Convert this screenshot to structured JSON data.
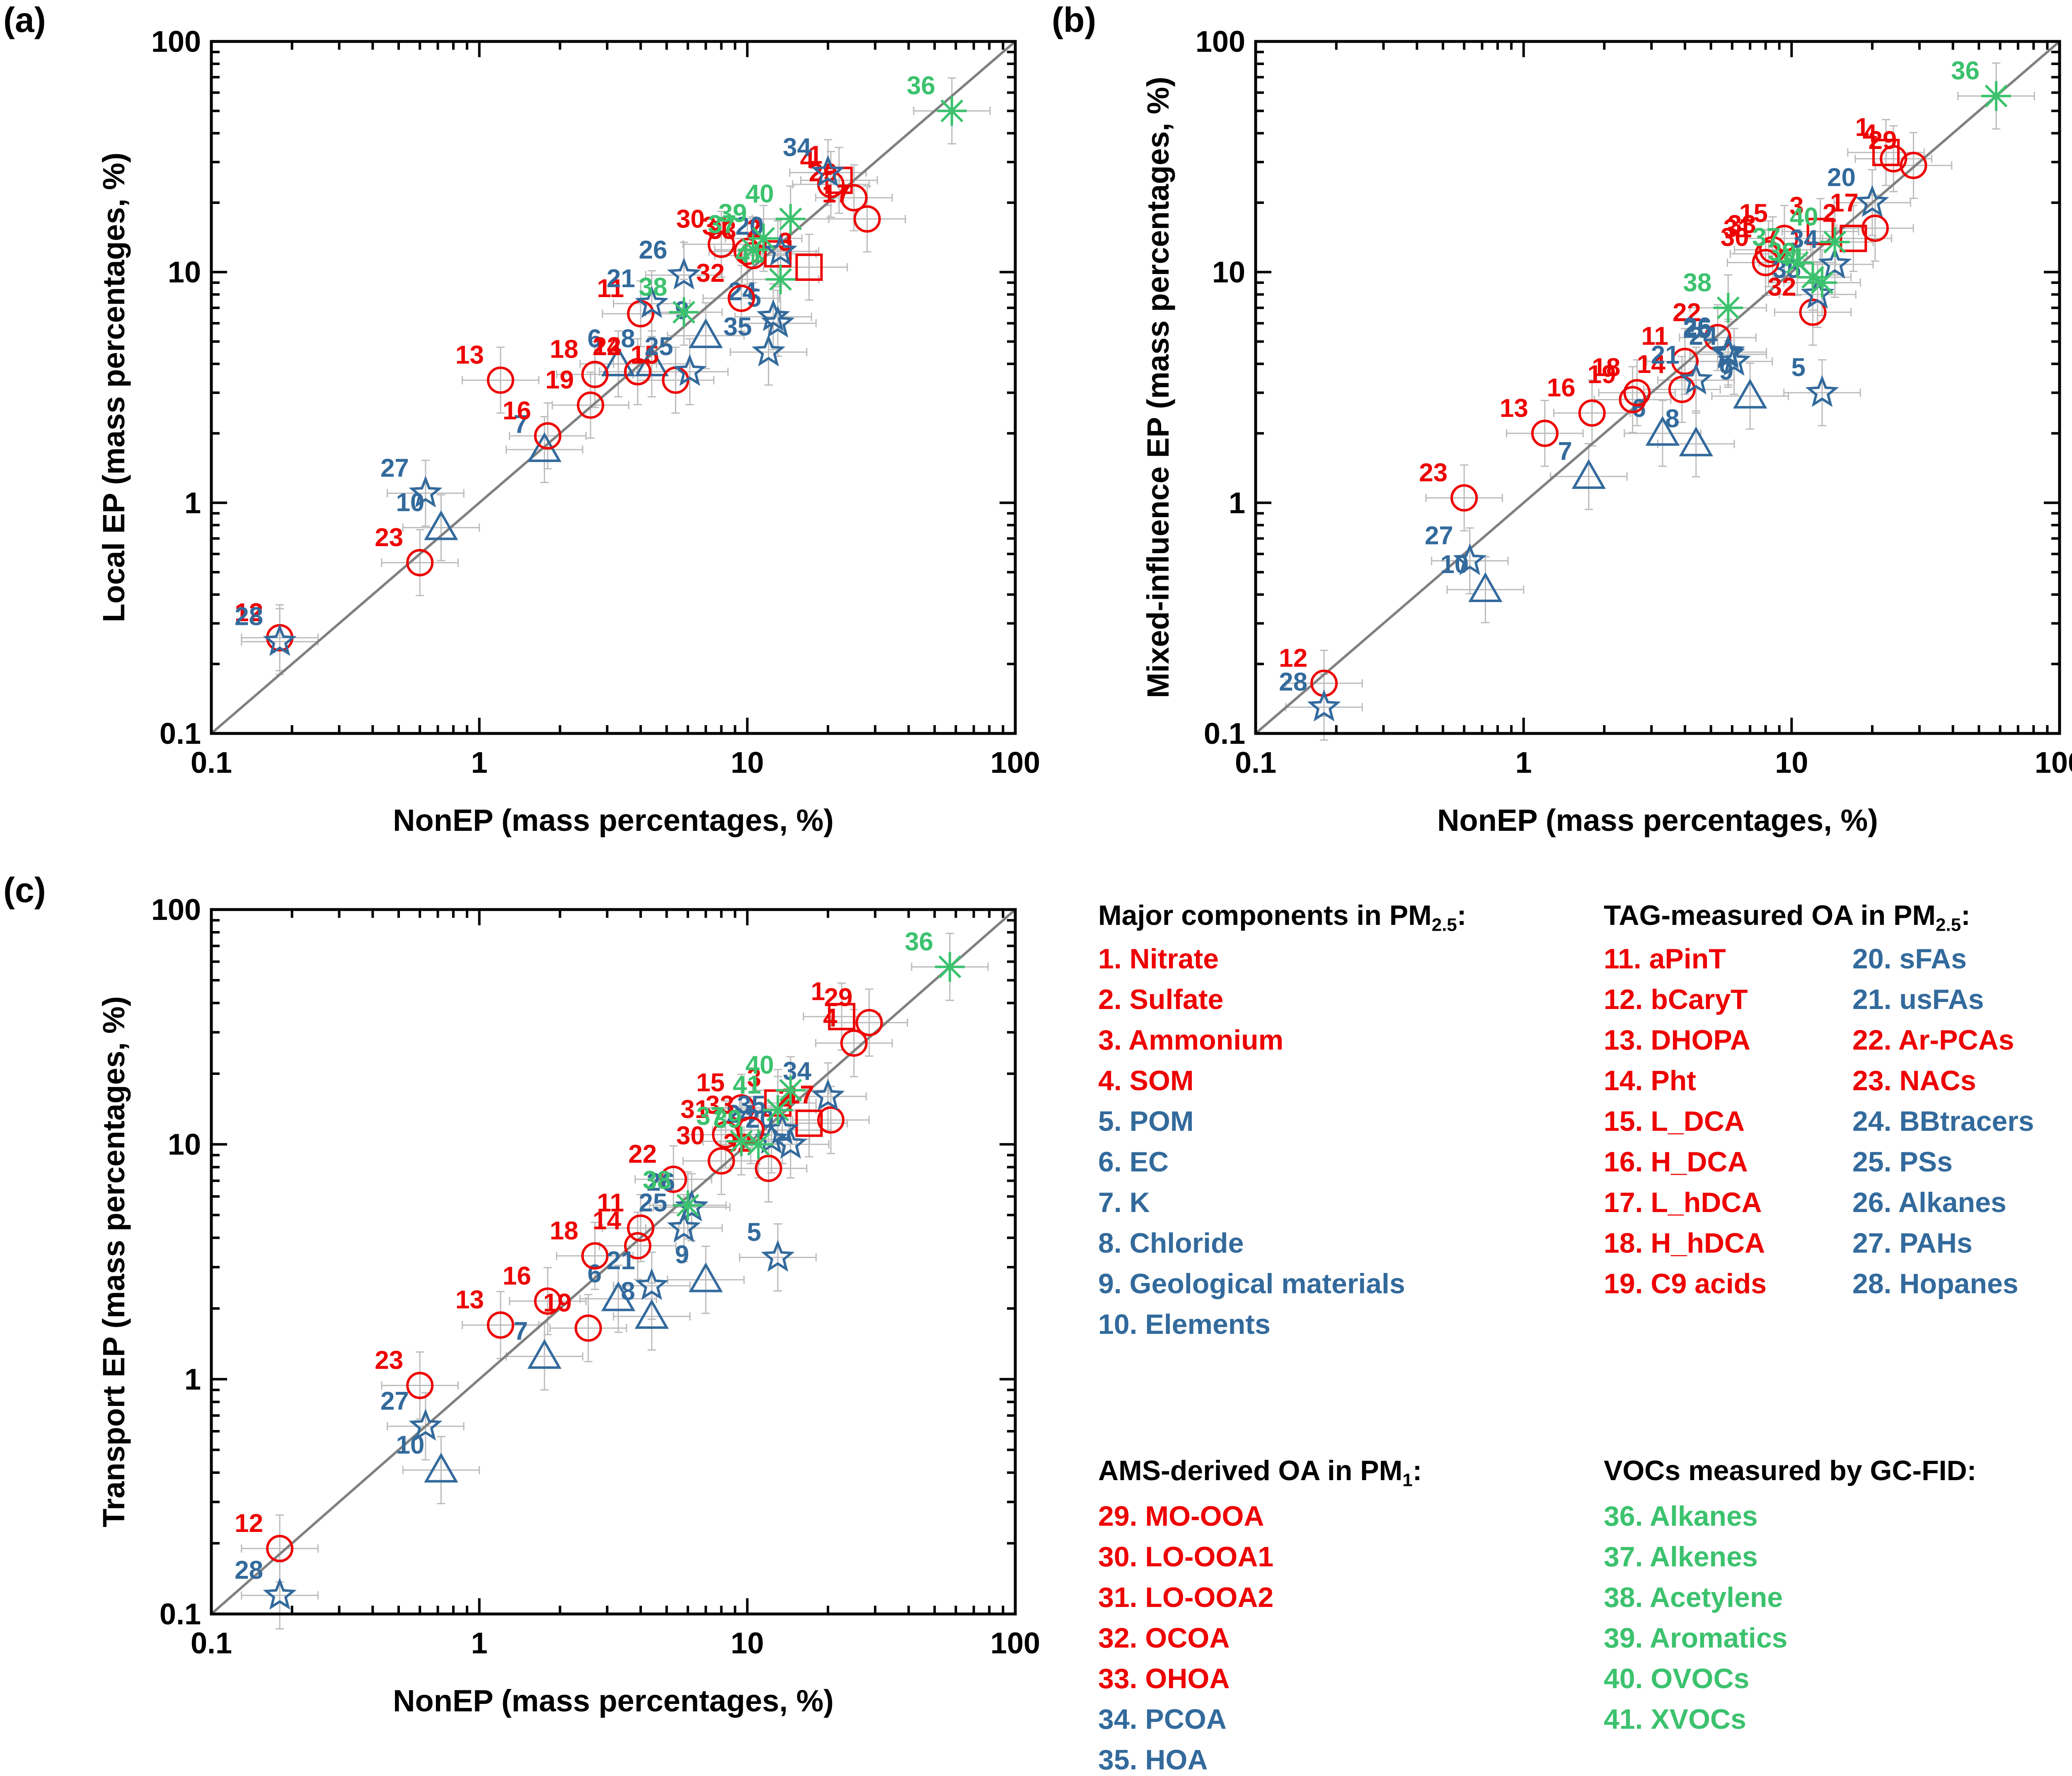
{
  "colors": {
    "red": "#EE0000",
    "blue": "#336A9C",
    "green": "#3CC26E",
    "errbar": "#BBBBBB",
    "diag": "#808080"
  },
  "groups": {
    "1": "red",
    "2": "red",
    "3": "red",
    "4": "red",
    "5": "blue",
    "6": "blue",
    "7": "blue",
    "8": "blue",
    "9": "blue",
    "10": "blue",
    "11": "red",
    "12": "red",
    "13": "red",
    "14": "red",
    "15": "red",
    "16": "red",
    "17": "red",
    "18": "red",
    "19": "red",
    "20": "blue",
    "21": "blue",
    "22": "red",
    "23": "red",
    "24": "blue",
    "25": "blue",
    "26": "blue",
    "27": "blue",
    "28": "blue",
    "29": "red",
    "30": "red",
    "31": "red",
    "32": "red",
    "33": "red",
    "34": "blue",
    "35": "blue",
    "36": "green",
    "37": "green",
    "38": "green",
    "39": "green",
    "40": "green",
    "41": "green"
  },
  "markers": {
    "1": "square",
    "2": "square",
    "3": "square",
    "4": "circle",
    "5": "star",
    "6": "triangle",
    "7": "triangle",
    "8": "triangle",
    "9": "triangle",
    "10": "triangle",
    "11": "circle",
    "12": "circle",
    "13": "circle",
    "14": "circle",
    "15": "circle",
    "16": "circle",
    "17": "circle",
    "18": "circle",
    "19": "circle",
    "20": "star",
    "21": "star",
    "22": "circle",
    "23": "circle",
    "24": "star",
    "25": "star",
    "26": "star",
    "27": "star",
    "28": "star",
    "29": "circle",
    "30": "circle",
    "31": "circle",
    "32": "circle",
    "33": "circle",
    "34": "star",
    "35": "star",
    "36": "asterisk",
    "37": "asterisk",
    "38": "asterisk",
    "39": "asterisk",
    "40": "asterisk",
    "41": "asterisk"
  },
  "chart_data": [
    {
      "panel": "(a)",
      "type": "scatter",
      "xlabel": "NonEP (mass percentages, %)",
      "ylabel": "Local EP (mass percentages, %)",
      "xscale": "log",
      "yscale": "log",
      "xlim": [
        0.1,
        100
      ],
      "ylim": [
        0.1,
        100
      ],
      "xticks": [
        "0.1",
        "1",
        "10",
        "100"
      ],
      "yticks": [
        "0.1",
        "1",
        "10",
        "100"
      ],
      "reference_line": "1:1",
      "points": [
        {
          "id": "1",
          "x": 22,
          "y": 25
        },
        {
          "id": "2",
          "x": 13,
          "y": 12
        },
        {
          "id": "3",
          "x": 17,
          "y": 10.5
        },
        {
          "id": "4",
          "x": 20.5,
          "y": 24
        },
        {
          "id": "5",
          "x": 13,
          "y": 6
        },
        {
          "id": "6",
          "x": 3.3,
          "y": 4
        },
        {
          "id": "7",
          "x": 1.75,
          "y": 1.7
        },
        {
          "id": "8",
          "x": 4.4,
          "y": 4
        },
        {
          "id": "9",
          "x": 7,
          "y": 5.3
        },
        {
          "id": "10",
          "x": 0.72,
          "y": 0.78
        },
        {
          "id": "11",
          "x": 4,
          "y": 6.6
        },
        {
          "id": "12",
          "x": 0.18,
          "y": 0.26
        },
        {
          "id": "13",
          "x": 1.2,
          "y": 3.4
        },
        {
          "id": "14",
          "x": 3.9,
          "y": 3.7
        },
        {
          "id": "15",
          "x": 5.4,
          "y": 3.4
        },
        {
          "id": "16",
          "x": 1.8,
          "y": 1.95
        },
        {
          "id": "17",
          "x": 28,
          "y": 17
        },
        {
          "id": "18",
          "x": 2.7,
          "y": 3.6
        },
        {
          "id": "19",
          "x": 2.6,
          "y": 2.65
        },
        {
          "id": "20",
          "x": 13.3,
          "y": 12.3
        },
        {
          "id": "21",
          "x": 4.4,
          "y": 7.3
        },
        {
          "id": "22",
          "x": 3.9,
          "y": 3.7
        },
        {
          "id": "23",
          "x": 0.6,
          "y": 0.55
        },
        {
          "id": "24",
          "x": 12.5,
          "y": 6.4
        },
        {
          "id": "25",
          "x": 6.1,
          "y": 3.7
        },
        {
          "id": "26",
          "x": 5.8,
          "y": 9.7
        },
        {
          "id": "27",
          "x": 0.63,
          "y": 1.1
        },
        {
          "id": "28",
          "x": 0.18,
          "y": 0.25
        },
        {
          "id": "29",
          "x": 25,
          "y": 21
        },
        {
          "id": "30",
          "x": 8,
          "y": 13.2
        },
        {
          "id": "31",
          "x": 10,
          "y": 12.3
        },
        {
          "id": "32",
          "x": 9.5,
          "y": 7.7
        },
        {
          "id": "33",
          "x": 10.5,
          "y": 11.8
        },
        {
          "id": "34",
          "x": 20,
          "y": 27
        },
        {
          "id": "35",
          "x": 12,
          "y": 4.5
        },
        {
          "id": "36",
          "x": 58,
          "y": 50
        },
        {
          "id": "37",
          "x": 10.5,
          "y": 12.5
        },
        {
          "id": "38",
          "x": 5.8,
          "y": 6.7
        },
        {
          "id": "39",
          "x": 11.5,
          "y": 14
        },
        {
          "id": "40",
          "x": 14.5,
          "y": 17
        },
        {
          "id": "41",
          "x": 13.3,
          "y": 9.3
        }
      ]
    },
    {
      "panel": "(b)",
      "type": "scatter",
      "xlabel": "NonEP (mass percentages, %)",
      "ylabel": "Mixed-influence EP (mass percentages, %)",
      "xscale": "log",
      "yscale": "log",
      "xlim": [
        0.1,
        100
      ],
      "ylim": [
        0.1,
        100
      ],
      "xticks": [
        "0.1",
        "1",
        "10",
        "100"
      ],
      "yticks": [
        "0.1",
        "1",
        "10",
        "100"
      ],
      "reference_line": "1:1",
      "points": [
        {
          "id": "1",
          "x": 22.5,
          "y": 33
        },
        {
          "id": "2",
          "x": 17,
          "y": 14
        },
        {
          "id": "3",
          "x": 12.8,
          "y": 15
        },
        {
          "id": "4",
          "x": 24,
          "y": 31
        },
        {
          "id": "5",
          "x": 13,
          "y": 3
        },
        {
          "id": "6",
          "x": 3.3,
          "y": 2
        },
        {
          "id": "7",
          "x": 1.75,
          "y": 1.3
        },
        {
          "id": "8",
          "x": 4.4,
          "y": 1.8
        },
        {
          "id": "9",
          "x": 7,
          "y": 2.9
        },
        {
          "id": "10",
          "x": 0.72,
          "y": 0.42
        },
        {
          "id": "11",
          "x": 4,
          "y": 4.1
        },
        {
          "id": "12",
          "x": 0.18,
          "y": 0.165
        },
        {
          "id": "13",
          "x": 1.2,
          "y": 2
        },
        {
          "id": "14",
          "x": 3.9,
          "y": 3.1
        },
        {
          "id": "15",
          "x": 9.4,
          "y": 14
        },
        {
          "id": "16",
          "x": 1.8,
          "y": 2.45
        },
        {
          "id": "17",
          "x": 20.5,
          "y": 15.5
        },
        {
          "id": "18",
          "x": 2.65,
          "y": 3
        },
        {
          "id": "19",
          "x": 2.55,
          "y": 2.8
        },
        {
          "id": "20",
          "x": 20,
          "y": 20
        },
        {
          "id": "21",
          "x": 4.4,
          "y": 3.4
        },
        {
          "id": "22",
          "x": 5.3,
          "y": 5.2
        },
        {
          "id": "23",
          "x": 0.6,
          "y": 1.05
        },
        {
          "id": "24",
          "x": 6.1,
          "y": 4.1
        },
        {
          "id": "25",
          "x": 5.8,
          "y": 4.4
        },
        {
          "id": "26",
          "x": 5.8,
          "y": 4.5
        },
        {
          "id": "27",
          "x": 0.63,
          "y": 0.56
        },
        {
          "id": "28",
          "x": 0.18,
          "y": 0.13
        },
        {
          "id": "29",
          "x": 28.5,
          "y": 29
        },
        {
          "id": "30",
          "x": 8,
          "y": 11
        },
        {
          "id": "31",
          "x": 8.2,
          "y": 12
        },
        {
          "id": "32",
          "x": 12,
          "y": 6.7
        },
        {
          "id": "33",
          "x": 8.5,
          "y": 12.5
        },
        {
          "id": "34",
          "x": 14.5,
          "y": 10.8
        },
        {
          "id": "35",
          "x": 12.5,
          "y": 8
        },
        {
          "id": "36",
          "x": 58,
          "y": 58
        },
        {
          "id": "37",
          "x": 10.5,
          "y": 11
        },
        {
          "id": "38",
          "x": 5.8,
          "y": 7
        },
        {
          "id": "39",
          "x": 12,
          "y": 9.5
        },
        {
          "id": "40",
          "x": 14.5,
          "y": 13.5
        },
        {
          "id": "41",
          "x": 13,
          "y": 9
        }
      ]
    },
    {
      "panel": "(c)",
      "type": "scatter",
      "xlabel": "NonEP (mass percentages, %)",
      "ylabel": "Transport EP (mass percentages, %)",
      "xscale": "log",
      "yscale": "log",
      "xlim": [
        0.1,
        100
      ],
      "ylim": [
        0.1,
        100
      ],
      "xticks": [
        "0.1",
        "1",
        "10",
        "100"
      ],
      "yticks": [
        "0.1",
        "1",
        "10",
        "100"
      ],
      "reference_line": "1:1",
      "points": [
        {
          "id": "1",
          "x": 22.5,
          "y": 35
        },
        {
          "id": "2",
          "x": 17,
          "y": 12.3
        },
        {
          "id": "3",
          "x": 13,
          "y": 15
        },
        {
          "id": "4",
          "x": 25,
          "y": 27
        },
        {
          "id": "5",
          "x": 13,
          "y": 3.3
        },
        {
          "id": "6",
          "x": 3.3,
          "y": 2.2
        },
        {
          "id": "7",
          "x": 1.75,
          "y": 1.25
        },
        {
          "id": "8",
          "x": 4.4,
          "y": 1.85
        },
        {
          "id": "9",
          "x": 7,
          "y": 2.65
        },
        {
          "id": "10",
          "x": 0.72,
          "y": 0.41
        },
        {
          "id": "11",
          "x": 4,
          "y": 4.4
        },
        {
          "id": "12",
          "x": 0.18,
          "y": 0.19
        },
        {
          "id": "13",
          "x": 1.2,
          "y": 1.7
        },
        {
          "id": "14",
          "x": 3.9,
          "y": 3.7
        },
        {
          "id": "15",
          "x": 9.5,
          "y": 14.3
        },
        {
          "id": "16",
          "x": 1.8,
          "y": 2.15
        },
        {
          "id": "17",
          "x": 20.5,
          "y": 12.7
        },
        {
          "id": "18",
          "x": 2.7,
          "y": 3.35
        },
        {
          "id": "19",
          "x": 2.55,
          "y": 1.65
        },
        {
          "id": "20",
          "x": 14.5,
          "y": 10
        },
        {
          "id": "21",
          "x": 4.4,
          "y": 2.5
        },
        {
          "id": "22",
          "x": 5.3,
          "y": 7.1
        },
        {
          "id": "23",
          "x": 0.6,
          "y": 0.94
        },
        {
          "id": "24",
          "x": 12.3,
          "y": 10.5
        },
        {
          "id": "25",
          "x": 5.8,
          "y": 4.4
        },
        {
          "id": "26",
          "x": 6.2,
          "y": 5.4
        },
        {
          "id": "27",
          "x": 0.63,
          "y": 0.63
        },
        {
          "id": "28",
          "x": 0.18,
          "y": 0.12
        },
        {
          "id": "29",
          "x": 28.5,
          "y": 33
        },
        {
          "id": "30",
          "x": 8,
          "y": 8.5
        },
        {
          "id": "31",
          "x": 8.3,
          "y": 11
        },
        {
          "id": "32",
          "x": 12,
          "y": 7.9
        },
        {
          "id": "33",
          "x": 10.3,
          "y": 11.5
        },
        {
          "id": "34",
          "x": 20,
          "y": 16
        },
        {
          "id": "35",
          "x": 13.5,
          "y": 11.5
        },
        {
          "id": "36",
          "x": 57,
          "y": 57
        },
        {
          "id": "37",
          "x": 9.5,
          "y": 10.3
        },
        {
          "id": "38",
          "x": 6,
          "y": 5.5
        },
        {
          "id": "39",
          "x": 11,
          "y": 10
        },
        {
          "id": "40",
          "x": 14.5,
          "y": 17
        },
        {
          "id": "41",
          "x": 13,
          "y": 14
        }
      ]
    }
  ],
  "legend": {
    "major": {
      "title": "Major components in PM",
      "title_sub": "2.5",
      "title_end": ":",
      "items": [
        {
          "label": "1. Nitrate",
          "color": "red"
        },
        {
          "label": "2. Sulfate",
          "color": "red"
        },
        {
          "label": "3. Ammonium",
          "color": "red"
        },
        {
          "label": "4. SOM",
          "color": "red"
        },
        {
          "label": "5. POM",
          "color": "blue"
        },
        {
          "label": "6. EC",
          "color": "blue"
        },
        {
          "label": "7. K",
          "color": "blue"
        },
        {
          "label": "8. Chloride",
          "color": "blue"
        },
        {
          "label": "9. Geological materials",
          "color": "blue"
        },
        {
          "label": "10. Elements",
          "color": "blue"
        }
      ]
    },
    "tag": {
      "title": "TAG-measured OA in PM",
      "title_sub": "2.5",
      "title_end": ":",
      "items": [
        {
          "label": "11. aPinT",
          "color": "red"
        },
        {
          "label": "12. bCaryT",
          "color": "red"
        },
        {
          "label": "13. DHOPA",
          "color": "red"
        },
        {
          "label": "14. Pht",
          "color": "red"
        },
        {
          "label": "15. L_DCA",
          "color": "red"
        },
        {
          "label": "16. H_DCA",
          "color": "red"
        },
        {
          "label": "17. L_hDCA",
          "color": "red"
        },
        {
          "label": "18. H_hDCA",
          "color": "red"
        },
        {
          "label": "19. C9 acids",
          "color": "red"
        },
        {
          "label": "20. sFAs",
          "color": "blue"
        },
        {
          "label": "21. usFAs",
          "color": "blue"
        },
        {
          "label": "22. Ar-PCAs",
          "color": "red"
        },
        {
          "label": "23. NACs",
          "color": "red"
        },
        {
          "label": "24. BBtracers",
          "color": "blue"
        },
        {
          "label": "25. PSs",
          "color": "blue"
        },
        {
          "label": "26. Alkanes",
          "color": "blue"
        },
        {
          "label": "27. PAHs",
          "color": "blue"
        },
        {
          "label": "28. Hopanes",
          "color": "blue"
        }
      ]
    },
    "ams": {
      "title": "AMS-derived OA in PM",
      "title_sub": "1",
      "title_end": ":",
      "items": [
        {
          "label": "29. MO-OOA",
          "color": "red"
        },
        {
          "label": "30. LO-OOA1",
          "color": "red"
        },
        {
          "label": "31. LO-OOA2",
          "color": "red"
        },
        {
          "label": "32. OCOA",
          "color": "red"
        },
        {
          "label": "33. OHOA",
          "color": "red"
        },
        {
          "label": "34. PCOA",
          "color": "blue"
        },
        {
          "label": "35. HOA",
          "color": "blue"
        }
      ]
    },
    "voc": {
      "title": "VOCs measured by GC-FID:",
      "items": [
        {
          "label": "36. Alkanes",
          "color": "green"
        },
        {
          "label": "37. Alkenes",
          "color": "green"
        },
        {
          "label": "38. Acetylene",
          "color": "green"
        },
        {
          "label": "39. Aromatics",
          "color": "green"
        },
        {
          "label": "40. OVOCs",
          "color": "green"
        },
        {
          "label": "41. XVOCs",
          "color": "green"
        }
      ]
    }
  }
}
